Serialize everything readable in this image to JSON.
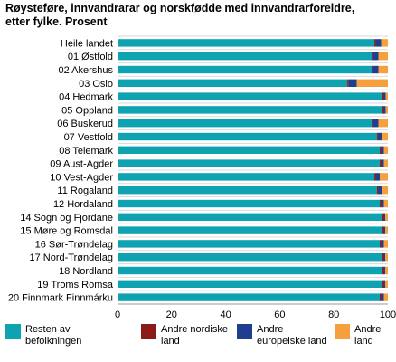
{
  "title_line1": "Røysteføre, innvandrarar og norskfødde med innvandrarforeldre,",
  "title_line2": "etter fylke. Prosent",
  "chart_data": {
    "type": "bar",
    "orientation": "horizontal",
    "stacked": true,
    "categories": [
      "Heile landet",
      "01 Østfold",
      "02 Akershus",
      "03 Oslo",
      "04 Hedmark",
      "05 Oppland",
      "06 Buskerud",
      "07 Vestfold",
      "08 Telemark",
      "09 Aust-Agder",
      "10 Vest-Agder",
      "11 Rogaland",
      "12 Hordaland",
      "14 Sogn og Fjordane",
      "15 Møre og Romsdal",
      "16 Sør-Trøndelag",
      "17 Nord-Trøndelag",
      "18 Nordland",
      "19 Troms Romsa",
      "20 Finnmark Finnmárku"
    ],
    "series": [
      {
        "name": "Resten av befolkningen",
        "color": "#0fa3b1",
        "values": [
          95,
          94,
          94,
          85,
          98,
          98,
          94,
          96,
          97,
          97,
          95,
          96,
          97,
          98,
          98,
          97,
          98,
          98,
          98,
          97
        ]
      },
      {
        "name": "Andre nordiske land",
        "color": "#8b1a1a",
        "values": [
          0.5,
          0.5,
          0.5,
          0.5,
          0.5,
          0.5,
          0.5,
          0.5,
          0.5,
          0.5,
          0.5,
          0.5,
          0.5,
          0.5,
          0.5,
          0.5,
          0.5,
          0.5,
          0.5,
          0.5
        ]
      },
      {
        "name": "Andre europeiske land",
        "color": "#1e3f8f",
        "values": [
          2,
          2,
          2,
          3,
          0.7,
          0.7,
          2,
          1.2,
          1,
          1,
          1.5,
          1.5,
          1,
          0.5,
          0.5,
          1,
          0.5,
          0.5,
          0.5,
          1
        ]
      },
      {
        "name": "Andre land",
        "color": "#f5a03c",
        "values": [
          2.5,
          3.5,
          3.5,
          11.5,
          0.8,
          0.8,
          3.5,
          2.3,
          1.5,
          1.5,
          3,
          2,
          1.5,
          1,
          1,
          1.5,
          1,
          1,
          1,
          1.5
        ]
      }
    ],
    "xlim": [
      0,
      100
    ],
    "xticks": [
      0,
      20,
      40,
      60,
      80,
      100
    ],
    "grid": true,
    "legend_position": "bottom"
  }
}
